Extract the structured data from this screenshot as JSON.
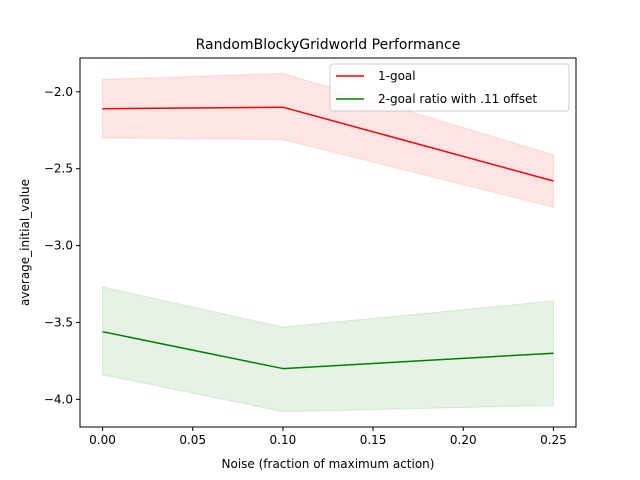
{
  "chart_data": {
    "type": "line",
    "title": "RandomBlockyGridworld Performance",
    "xlabel": "Noise (fraction of maximum action)",
    "ylabel": "average_initial_value",
    "xlim": [
      -0.0125,
      0.2625
    ],
    "ylim": [
      -4.18,
      -1.78
    ],
    "xticks": [
      0.0,
      0.05,
      0.1,
      0.15,
      0.2,
      0.25
    ],
    "xtick_labels": [
      "0.00",
      "0.05",
      "0.10",
      "0.15",
      "0.20",
      "0.25"
    ],
    "yticks": [
      -4.0,
      -3.5,
      -3.0,
      -2.5,
      -2.0
    ],
    "ytick_labels": [
      "−4.0",
      "−3.5",
      "−3.0",
      "−2.5",
      "−2.0"
    ],
    "grid": false,
    "legend_position": "top-right",
    "series": [
      {
        "name": "1-goal",
        "color": "#ff0000",
        "fill_color": "#ff0000",
        "x": [
          0.0,
          0.1,
          0.25
        ],
        "y": [
          -2.11,
          -2.1,
          -2.58
        ],
        "lower": [
          -2.3,
          -2.31,
          -2.75
        ],
        "upper": [
          -1.92,
          -1.88,
          -2.41
        ]
      },
      {
        "name": "2-goal ratio with .11 offset",
        "color": "#008000",
        "fill_color": "#008000",
        "x": [
          0.0,
          0.1,
          0.25
        ],
        "y": [
          -3.56,
          -3.8,
          -3.7
        ],
        "lower": [
          -3.84,
          -4.08,
          -4.04
        ],
        "upper": [
          -3.27,
          -3.53,
          -3.36
        ]
      }
    ]
  }
}
